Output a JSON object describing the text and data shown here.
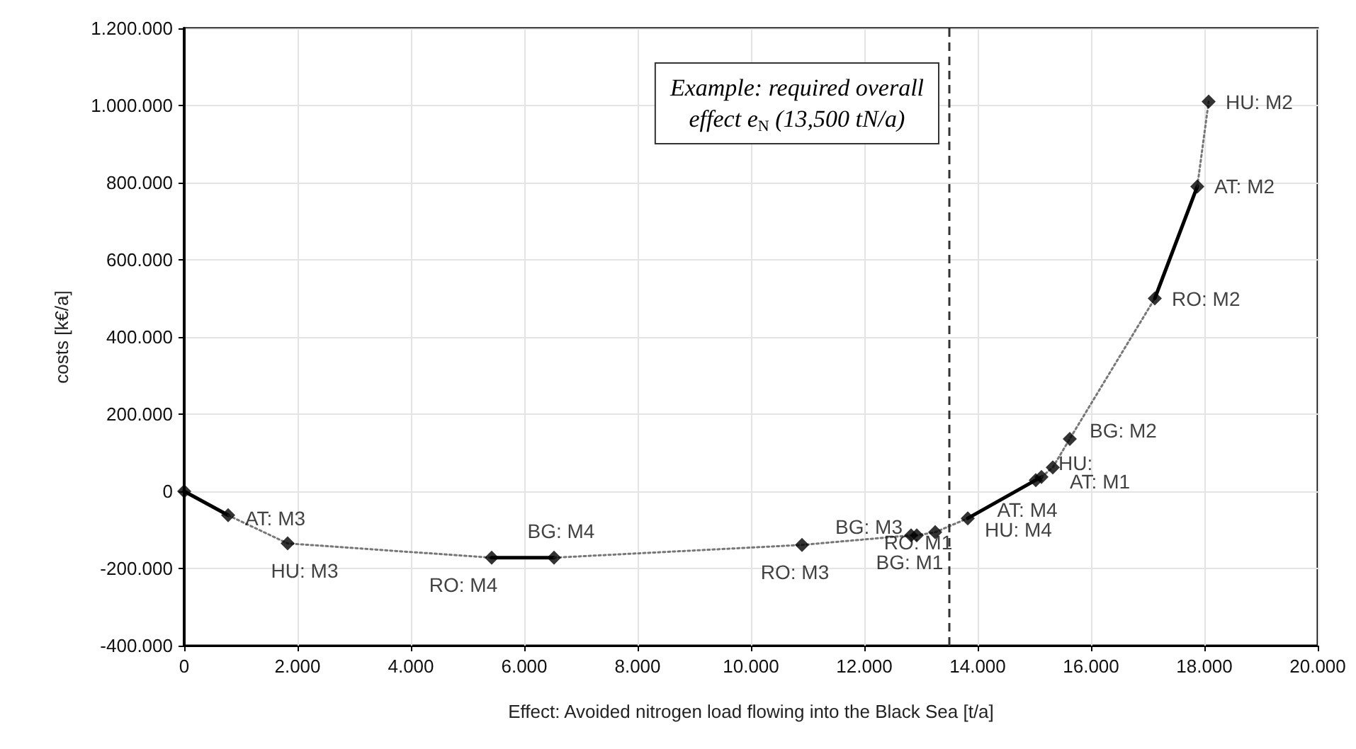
{
  "chart_data": {
    "type": "line",
    "xlabel": "Effect: Avoided nitrogen load flowing into the Black Sea [t/a]",
    "ylabel": "costs [k€/a]",
    "xlim": [
      0,
      20000
    ],
    "ylim": [
      -400000,
      1200000
    ],
    "xticks": [
      0,
      {
        "value": 2000,
        "label": "2.000"
      },
      {
        "value": 4000,
        "label": "4.000"
      },
      {
        "value": 6000,
        "label": "6.000"
      },
      {
        "value": 8000,
        "label": "8.000"
      },
      {
        "value": 10000,
        "label": "10.000"
      },
      {
        "value": 12000,
        "label": "12.000"
      },
      {
        "value": 14000,
        "label": "14.000"
      },
      {
        "value": 16000,
        "label": "16.000"
      },
      {
        "value": 18000,
        "label": "18.000"
      },
      {
        "value": 20000,
        "label": "20.000"
      }
    ],
    "yticks": [
      {
        "value": -400000,
        "label": "-400.000"
      },
      {
        "value": -200000,
        "label": "-200.000"
      },
      0,
      {
        "value": 200000,
        "label": "200.000"
      },
      {
        "value": 400000,
        "label": "400.000"
      },
      {
        "value": 600000,
        "label": "600.000"
      },
      {
        "value": 800000,
        "label": "800.000"
      },
      {
        "value": 1000000,
        "label": "1.000.000"
      },
      {
        "value": 1200000,
        "label": "1.200.000"
      }
    ],
    "grid": true,
    "series": [
      {
        "type": "scatter",
        "marker": "diamond",
        "color": "#000000",
        "x": [
          0,
          775,
          1825,
          5425,
          6525,
          10900,
          12825,
          12925,
          13250,
          13825,
          15025,
          15125,
          15325,
          15625,
          17125,
          17875,
          18075
        ],
        "values": [
          0,
          -62000,
          -135000,
          -172000,
          -172000,
          -139000,
          -114000,
          -114000,
          -106000,
          -70000,
          29000,
          37000,
          62000,
          136000,
          500000,
          790000,
          1010000
        ],
        "value_labels": [
          null,
          "AT: M3",
          "HU: M3",
          "RO: M4",
          "BG: M4",
          "RO: M3",
          "BG: M3",
          "BG: M1",
          "RO: M1",
          "HU: M4",
          "HU:",
          "AT: M4",
          "AT: M1",
          "BG: M2",
          "RO: M2",
          "AT: M2",
          "HU: M2"
        ]
      },
      {
        "marker": "none",
        "line_style": "solid",
        "color": "#000000",
        "x": [
          0,
          775
        ],
        "values": [
          0,
          -62000
        ]
      },
      {
        "marker": "none",
        "line_style": "dotted",
        "color": "#777777",
        "x": [
          775,
          1825,
          5425
        ],
        "values": [
          -62000,
          -135000,
          -172000
        ]
      },
      {
        "marker": "none",
        "line_style": "solid",
        "color": "#000000",
        "x": [
          5425,
          6525
        ],
        "values": [
          -172000,
          -172000
        ]
      },
      {
        "marker": "none",
        "line_style": "dotted",
        "color": "#777777",
        "x": [
          6525,
          10900,
          12825,
          12925,
          13250,
          13825
        ],
        "values": [
          -172000,
          -139000,
          -114000,
          -114000,
          -106000,
          -70000
        ]
      },
      {
        "marker": "none",
        "line_style": "solid",
        "color": "#000000",
        "x": [
          13825,
          15025,
          15125
        ],
        "values": [
          -70000,
          29000,
          37000
        ]
      },
      {
        "marker": "none",
        "line_style": "dotted",
        "color": "#777777",
        "x": [
          15125,
          15325,
          15625,
          17125
        ],
        "values": [
          37000,
          62000,
          136000,
          500000
        ]
      },
      {
        "marker": "none",
        "line_style": "solid",
        "color": "#000000",
        "x": [
          17125,
          17875
        ],
        "values": [
          500000,
          790000
        ]
      },
      {
        "marker": "none",
        "line_style": "dotted",
        "color": "#777777",
        "x": [
          17875,
          18075
        ],
        "values": [
          790000,
          1010000
        ]
      }
    ],
    "ref_lines": [
      {
        "axis": "x",
        "value": 13500,
        "label": "Example: required overall effect e$_{N}$ (13,500 tN/a)",
        "line_style": "dashed",
        "color": "#333333"
      }
    ]
  }
}
